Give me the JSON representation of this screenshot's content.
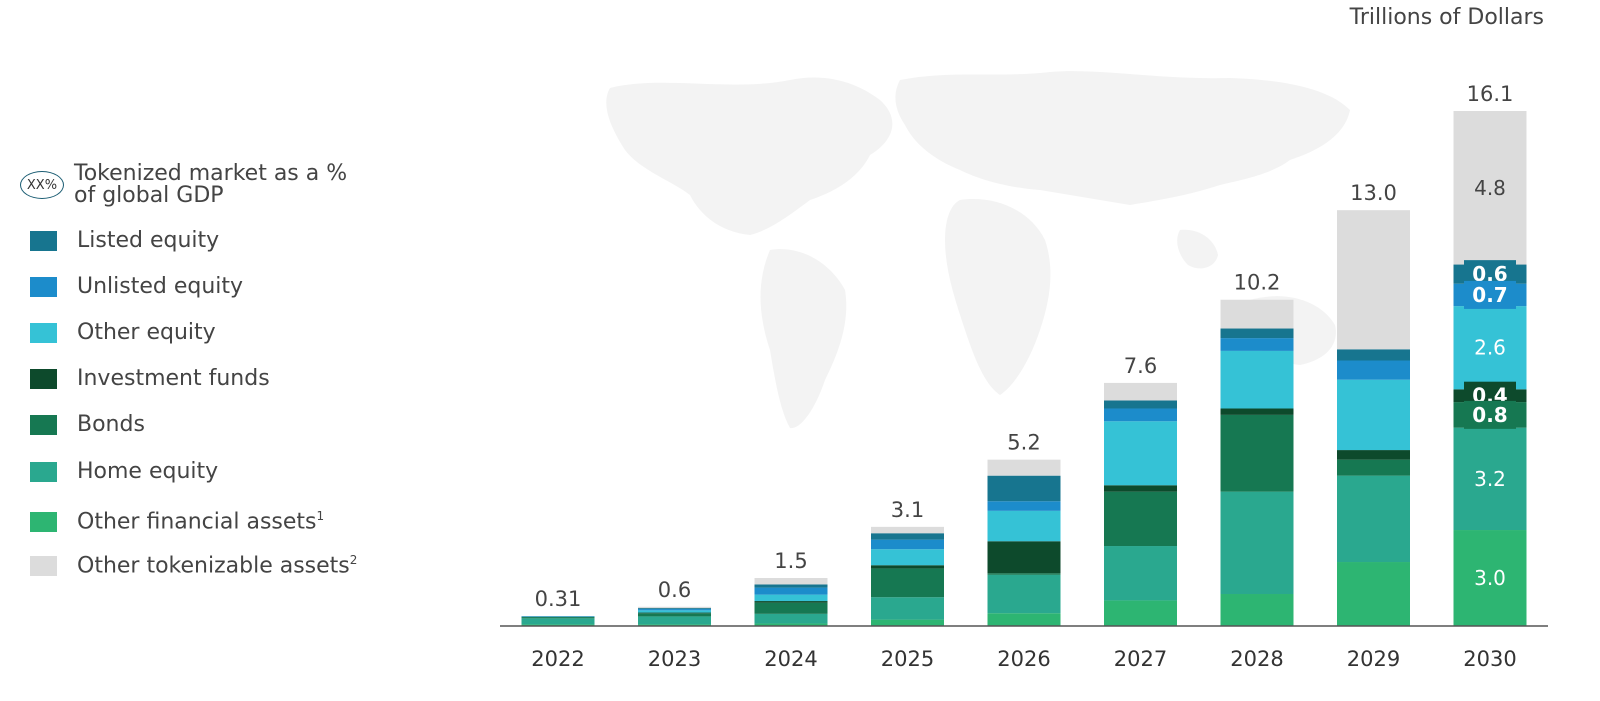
{
  "chart_data": {
    "type": "bar",
    "stacked": true,
    "unit_label": "Trillions of Dollars",
    "categories": [
      "2022",
      "2023",
      "2024",
      "2025",
      "2026",
      "2027",
      "2028",
      "2029",
      "2030"
    ],
    "totals": [
      "0.31",
      "0.6",
      "1.5",
      "3.1",
      "5.2",
      "7.6",
      "10.2",
      "13.0",
      "16.1"
    ],
    "ylim": [
      0,
      16.1
    ],
    "series": [
      {
        "name": "Other financial assets",
        "note": "1",
        "color": "#2db572",
        "values": [
          0.05,
          0.05,
          0.08,
          0.2,
          0.4,
          0.8,
          1.0,
          2.0,
          3.0
        ]
      },
      {
        "name": "Home equity",
        "color": "#2aa88f",
        "values": [
          0.19,
          0.25,
          0.3,
          0.7,
          1.2,
          1.7,
          3.2,
          2.7,
          3.2
        ]
      },
      {
        "name": "Bonds",
        "color": "#167852",
        "values": [
          0.04,
          0.1,
          0.35,
          0.9,
          0.05,
          1.7,
          2.4,
          0.5,
          0.8
        ]
      },
      {
        "name": "Investment funds",
        "color": "#0d4a2c",
        "values": [
          0.0,
          0.02,
          0.05,
          0.1,
          1.0,
          0.2,
          0.2,
          0.3,
          0.4
        ]
      },
      {
        "name": "Other equity",
        "color": "#35c2d6",
        "values": [
          0.01,
          0.07,
          0.2,
          0.5,
          0.95,
          2.0,
          1.8,
          2.2,
          2.6
        ]
      },
      {
        "name": "Unlisted equity",
        "color": "#1c8ccb",
        "values": [
          0.01,
          0.04,
          0.22,
          0.3,
          0.3,
          0.4,
          0.4,
          0.6,
          0.7
        ]
      },
      {
        "name": "Listed equity",
        "color": "#17758f",
        "values": [
          0.01,
          0.03,
          0.1,
          0.2,
          0.8,
          0.25,
          0.3,
          0.35,
          0.6
        ]
      },
      {
        "name": "Other tokenizable assets",
        "note": "2",
        "color": "#dcdcdc",
        "values": [
          0.0,
          0.04,
          0.2,
          0.2,
          0.5,
          0.55,
          0.9,
          4.35,
          4.8
        ]
      }
    ],
    "segment_labels": [
      {
        "category": "2030",
        "series": "Other tokenizable assets",
        "text": "4.8",
        "boxed": false
      },
      {
        "category": "2030",
        "series": "Listed equity",
        "text": "0.6",
        "boxed": true
      },
      {
        "category": "2030",
        "series": "Unlisted equity",
        "text": "0.7",
        "boxed": true
      },
      {
        "category": "2030",
        "series": "Other equity",
        "text": "2.6",
        "boxed": false
      },
      {
        "category": "2030",
        "series": "Investment funds",
        "text": "0.4",
        "boxed": true
      },
      {
        "category": "2030",
        "series": "Bonds",
        "text": "0.8",
        "boxed": true
      },
      {
        "category": "2030",
        "series": "Home equity",
        "text": "3.2",
        "boxed": false
      },
      {
        "category": "2030",
        "series": "Other financial assets",
        "text": "3.0",
        "boxed": false
      }
    ]
  },
  "legend": {
    "gdp_marker": "XX%",
    "gdp_text_line1": "Tokenized market as a %",
    "gdp_text_line2": "of global GDP",
    "items": [
      {
        "label": "Listed equity",
        "note": "",
        "color": "#17758f"
      },
      {
        "label": "Unlisted equity",
        "note": "",
        "color": "#1c8ccb"
      },
      {
        "label": "Other equity",
        "note": "",
        "color": "#35c2d6"
      },
      {
        "label": "Investment funds",
        "note": "",
        "color": "#0d4a2c"
      },
      {
        "label": "Bonds",
        "note": "",
        "color": "#167852"
      },
      {
        "label": "Home equity",
        "note": "",
        "color": "#2aa88f"
      },
      {
        "label": "Other financial assets",
        "note": "1",
        "color": "#2db572"
      },
      {
        "label": "Other tokenizable assets",
        "note": "2",
        "color": "#dcdcdc"
      }
    ]
  }
}
